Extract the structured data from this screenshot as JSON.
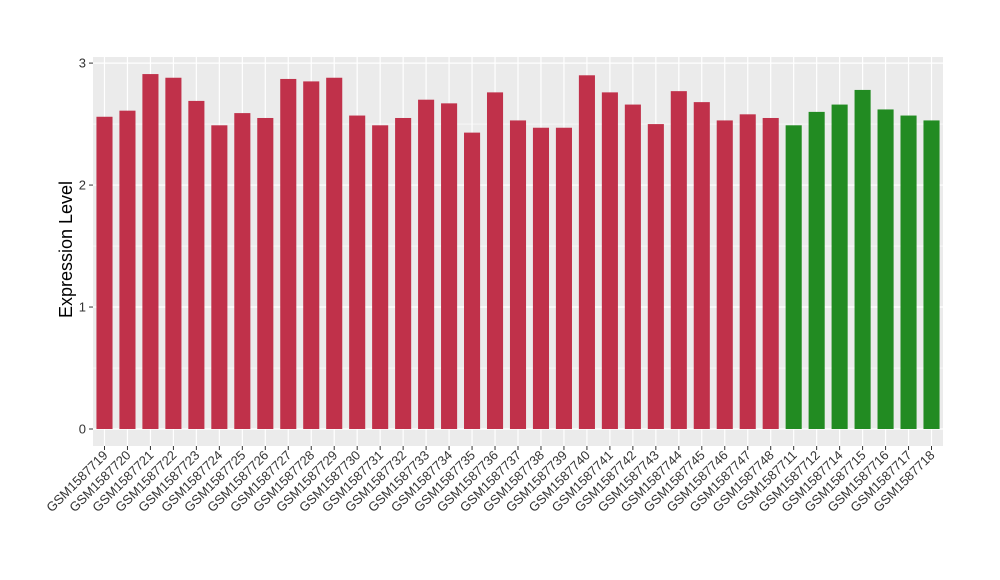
{
  "chart_data": {
    "type": "bar",
    "ylabel": "Expression Level",
    "xlabel": "",
    "ylim": [
      0,
      3.05
    ],
    "yticks": [
      0,
      1,
      2,
      3
    ],
    "grid": true,
    "categories": [
      "GSM1587719",
      "GSM1587720",
      "GSM1587721",
      "GSM1587722",
      "GSM1587723",
      "GSM1587724",
      "GSM1587725",
      "GSM1587726",
      "GSM1587727",
      "GSM1587728",
      "GSM1587729",
      "GSM1587730",
      "GSM1587731",
      "GSM1587732",
      "GSM1587733",
      "GSM1587734",
      "GSM1587735",
      "GSM1587736",
      "GSM1587737",
      "GSM1587738",
      "GSM1587739",
      "GSM1587740",
      "GSM1587741",
      "GSM1587742",
      "GSM1587743",
      "GSM1587744",
      "GSM1587745",
      "GSM1587746",
      "GSM1587747",
      "GSM1587748",
      "GSM1587711",
      "GSM1587712",
      "GSM1587714",
      "GSM1587715",
      "GSM1587716",
      "GSM1587717",
      "GSM1587718"
    ],
    "values": [
      2.56,
      2.61,
      2.91,
      2.88,
      2.69,
      2.49,
      2.59,
      2.55,
      2.87,
      2.85,
      2.88,
      2.57,
      2.49,
      2.55,
      2.7,
      2.67,
      2.43,
      2.76,
      2.53,
      2.47,
      2.47,
      2.9,
      2.76,
      2.66,
      2.5,
      2.77,
      2.68,
      2.53,
      2.58,
      2.55,
      2.49,
      2.6,
      2.66,
      2.78,
      2.62,
      2.57,
      2.53
    ],
    "bar_colors": [
      "#c0314a",
      "#c0314a",
      "#c0314a",
      "#c0314a",
      "#c0314a",
      "#c0314a",
      "#c0314a",
      "#c0314a",
      "#c0314a",
      "#c0314a",
      "#c0314a",
      "#c0314a",
      "#c0314a",
      "#c0314a",
      "#c0314a",
      "#c0314a",
      "#c0314a",
      "#c0314a",
      "#c0314a",
      "#c0314a",
      "#c0314a",
      "#c0314a",
      "#c0314a",
      "#c0314a",
      "#c0314a",
      "#c0314a",
      "#c0314a",
      "#c0314a",
      "#c0314a",
      "#c0314a",
      "#228b22",
      "#228b22",
      "#228b22",
      "#228b22",
      "#228b22",
      "#228b22",
      "#228b22"
    ],
    "panel_color": "#ebebeb",
    "grid_color": "#ffffff"
  }
}
